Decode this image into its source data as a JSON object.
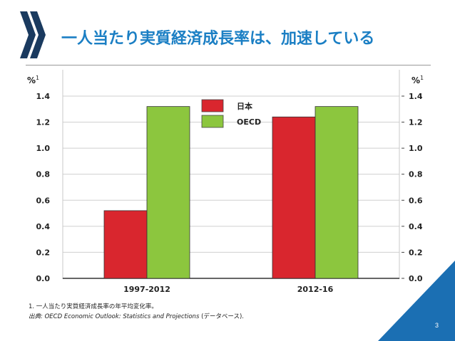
{
  "slide": {
    "title": "一人当たり実質経済成長率は、加速している",
    "page_number": "3",
    "footnote_1": "1.  一人当たり実質経済成長率の年平均変化率。",
    "source_label": "出典:",
    "source_text": "OECD Economic Outlook: Statistics and Projections",
    "source_suffix": " (データベース)."
  },
  "colors": {
    "title": "#1b7fc4",
    "logo": "#1a3a5f",
    "japan": "#d9262e",
    "oecd": "#8cc63e",
    "corner": "#1b6fb3"
  },
  "chart_data": {
    "type": "bar",
    "categories": [
      "1997-2012",
      "2012-16"
    ],
    "series": [
      {
        "name": "日本",
        "color": "#d9262e",
        "values": [
          0.52,
          1.24
        ]
      },
      {
        "name": "OECD",
        "color": "#8cc63e",
        "values": [
          1.32,
          1.32
        ]
      }
    ],
    "ylabel_left": "%",
    "ylabel_right": "%",
    "ylabel_superscript": "1",
    "ylim": [
      0,
      1.4
    ],
    "yticks": [
      "0.0",
      "0.2",
      "0.4",
      "0.6",
      "0.8",
      "1.0",
      "1.2",
      "1.4"
    ],
    "grid": true,
    "legend_position": "top-right"
  }
}
